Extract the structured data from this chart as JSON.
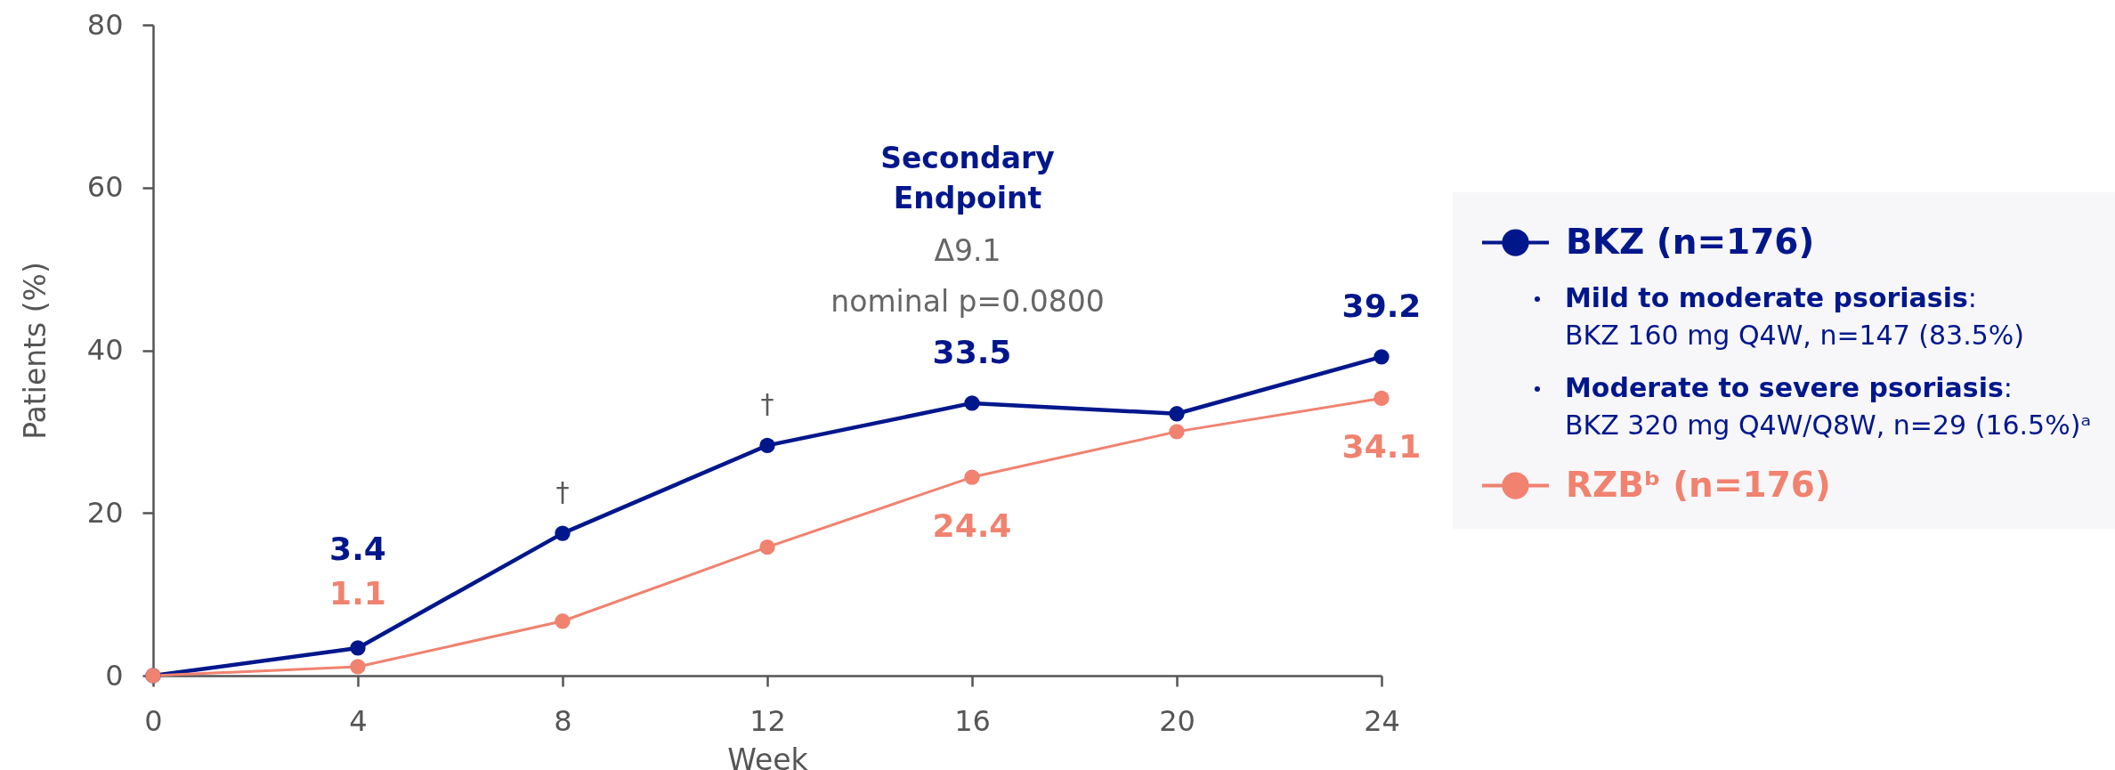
{
  "chart_data": {
    "type": "line",
    "xlabel": "Week",
    "ylabel": "Patients (%)",
    "x": [
      0,
      4,
      8,
      12,
      16,
      20,
      24
    ],
    "xlim": [
      0,
      24
    ],
    "xticks": [
      0,
      4,
      8,
      12,
      16,
      20,
      24
    ],
    "ylim": [
      0,
      80
    ],
    "yticks": [
      0,
      20,
      40,
      60,
      80
    ],
    "grid": false,
    "legend": "right",
    "marker": "circle",
    "line_style": "solid",
    "series": [
      {
        "name": "BKZ (n=176)",
        "color": "#00178c",
        "values": [
          0,
          3.4,
          17.5,
          28.3,
          33.5,
          32.2,
          39.2
        ],
        "value_labels": [
          null,
          "3.4",
          null,
          null,
          "33.5",
          null,
          "39.2"
        ]
      },
      {
        "name": "RZBᵇ (n=176)",
        "color": "#f0826f",
        "values": [
          0,
          1.1,
          6.7,
          15.8,
          24.4,
          30,
          34.1
        ],
        "value_labels": [
          null,
          "1.1",
          null,
          null,
          "24.4",
          null,
          "34.1"
        ]
      }
    ],
    "annotations": [
      "Secondary Endpoint",
      "Δ9.1",
      "nominal p=0.0800",
      {
        "text": "†",
        "x": 8,
        "y": 17.5
      },
      {
        "text": "†",
        "x": 12,
        "y": 28.3
      },
      "Mild to moderate psoriasis: BKZ 160 mg Q4W, n=147 (83.5%)",
      "Moderate to severe psoriasis: BKZ 320 mg Q4W/Q8W, n=29 (16.5%)ᵃ"
    ]
  }
}
